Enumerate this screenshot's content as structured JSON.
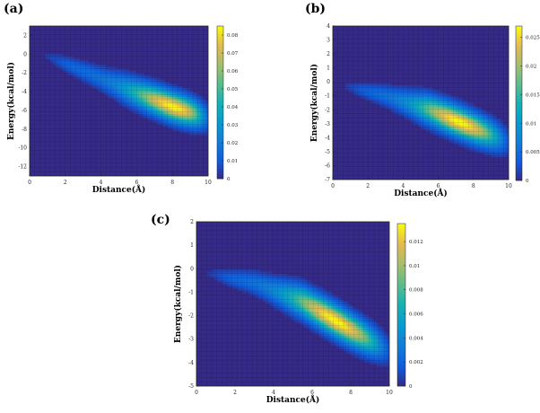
{
  "chart_data": [
    {
      "panel_label": "(a)",
      "type": "heatmap",
      "xlabel": "Distance(Å)",
      "ylabel": "Energy(kcal/mol)",
      "xlim": [
        0,
        10
      ],
      "ylim": [
        -13,
        3
      ],
      "x_ticks": [
        0,
        2,
        4,
        6,
        8,
        10
      ],
      "y_ticks": [
        -12,
        -10,
        -8,
        -6,
        -4,
        -2,
        0,
        2
      ],
      "colorbar": {
        "min": 0,
        "max": 0.085,
        "ticks": [
          0,
          0.01,
          0.02,
          0.03,
          0.04,
          0.05,
          0.06,
          0.07,
          0.08
        ]
      },
      "colormap": "parula",
      "peak": {
        "x": 8.1,
        "y": -5.8,
        "value": 0.08
      },
      "ridge": [
        [
          0.9,
          -0.2
        ],
        [
          3,
          -1.8
        ],
        [
          5.5,
          -3.8
        ],
        [
          8,
          -5.6
        ],
        [
          10,
          -6.8
        ]
      ]
    },
    {
      "panel_label": "(b)",
      "type": "heatmap",
      "xlabel": "Distance(Å)",
      "ylabel": "Energy(kcal/mol)",
      "xlim": [
        0,
        10
      ],
      "ylim": [
        -7,
        4
      ],
      "x_ticks": [
        0,
        2,
        4,
        6,
        8,
        10
      ],
      "y_ticks": [
        -7,
        -6,
        -5,
        -4,
        -3,
        -2,
        -1,
        0,
        1,
        2,
        3,
        4
      ],
      "colorbar": {
        "min": 0,
        "max": 0.027,
        "ticks": [
          0,
          0.005,
          0.01,
          0.015,
          0.02,
          0.025
        ]
      },
      "colormap": "parula",
      "peak": {
        "x": 7.2,
        "y": -2.7,
        "value": 0.025
      },
      "ridge": [
        [
          0.7,
          -0.3
        ],
        [
          3,
          -1.0
        ],
        [
          5.5,
          -2.0
        ],
        [
          8,
          -3.3
        ],
        [
          10,
          -4.3
        ]
      ]
    },
    {
      "panel_label": "(c)",
      "type": "heatmap",
      "xlabel": "Distance(Å)",
      "ylabel": "Energy(kcal/mol)",
      "xlim": [
        0,
        10
      ],
      "ylim": [
        -5,
        2
      ],
      "x_ticks": [
        0,
        2,
        4,
        6,
        8,
        10
      ],
      "y_ticks": [
        -5,
        -4,
        -3,
        -2,
        -1,
        0,
        1,
        2
      ],
      "colorbar": {
        "min": 0,
        "max": 0.0135,
        "ticks": [
          0,
          0.002,
          0.004,
          0.006,
          0.008,
          0.01,
          0.012
        ]
      },
      "colormap": "parula",
      "peak": {
        "x": 7.2,
        "y": -2.1,
        "value": 0.013
      },
      "ridge": [
        [
          0.6,
          -0.2
        ],
        [
          3,
          -0.6
        ],
        [
          5.5,
          -1.4
        ],
        [
          8,
          -2.6
        ],
        [
          10,
          -3.5
        ]
      ]
    }
  ]
}
